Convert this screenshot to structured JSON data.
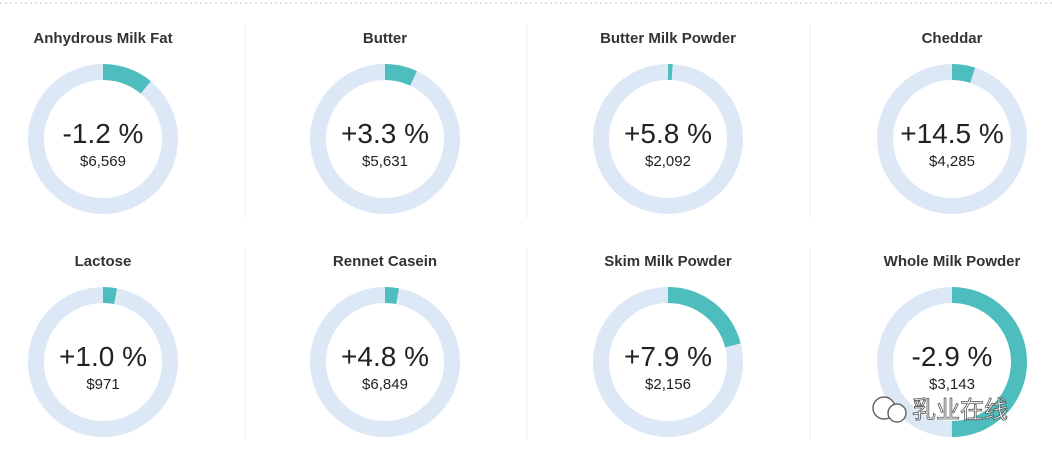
{
  "cards": [
    {
      "name": "Anhydrous Milk Fat",
      "change": "-1.2 %",
      "price": "$6,569",
      "share": 11
    },
    {
      "name": "Butter",
      "change": "+3.3 %",
      "price": "$5,631",
      "share": 7
    },
    {
      "name": "Butter Milk Powder",
      "change": "+5.8 %",
      "price": "$2,092",
      "share": 1
    },
    {
      "name": "Cheddar",
      "change": "+14.5 %",
      "price": "$4,285",
      "share": 5
    },
    {
      "name": "Lactose",
      "change": "+1.0 %",
      "price": "$971",
      "share": 3
    },
    {
      "name": "Rennet Casein",
      "change": "+4.8 %",
      "price": "$6,849",
      "share": 3
    },
    {
      "name": "Skim Milk Powder",
      "change": "+7.9 %",
      "price": "$2,156",
      "share": 21
    },
    {
      "name": "Whole Milk Powder",
      "change": "-2.9 %",
      "price": "$3,143",
      "share": 50
    }
  ],
  "watermark": "乳业在线"
}
